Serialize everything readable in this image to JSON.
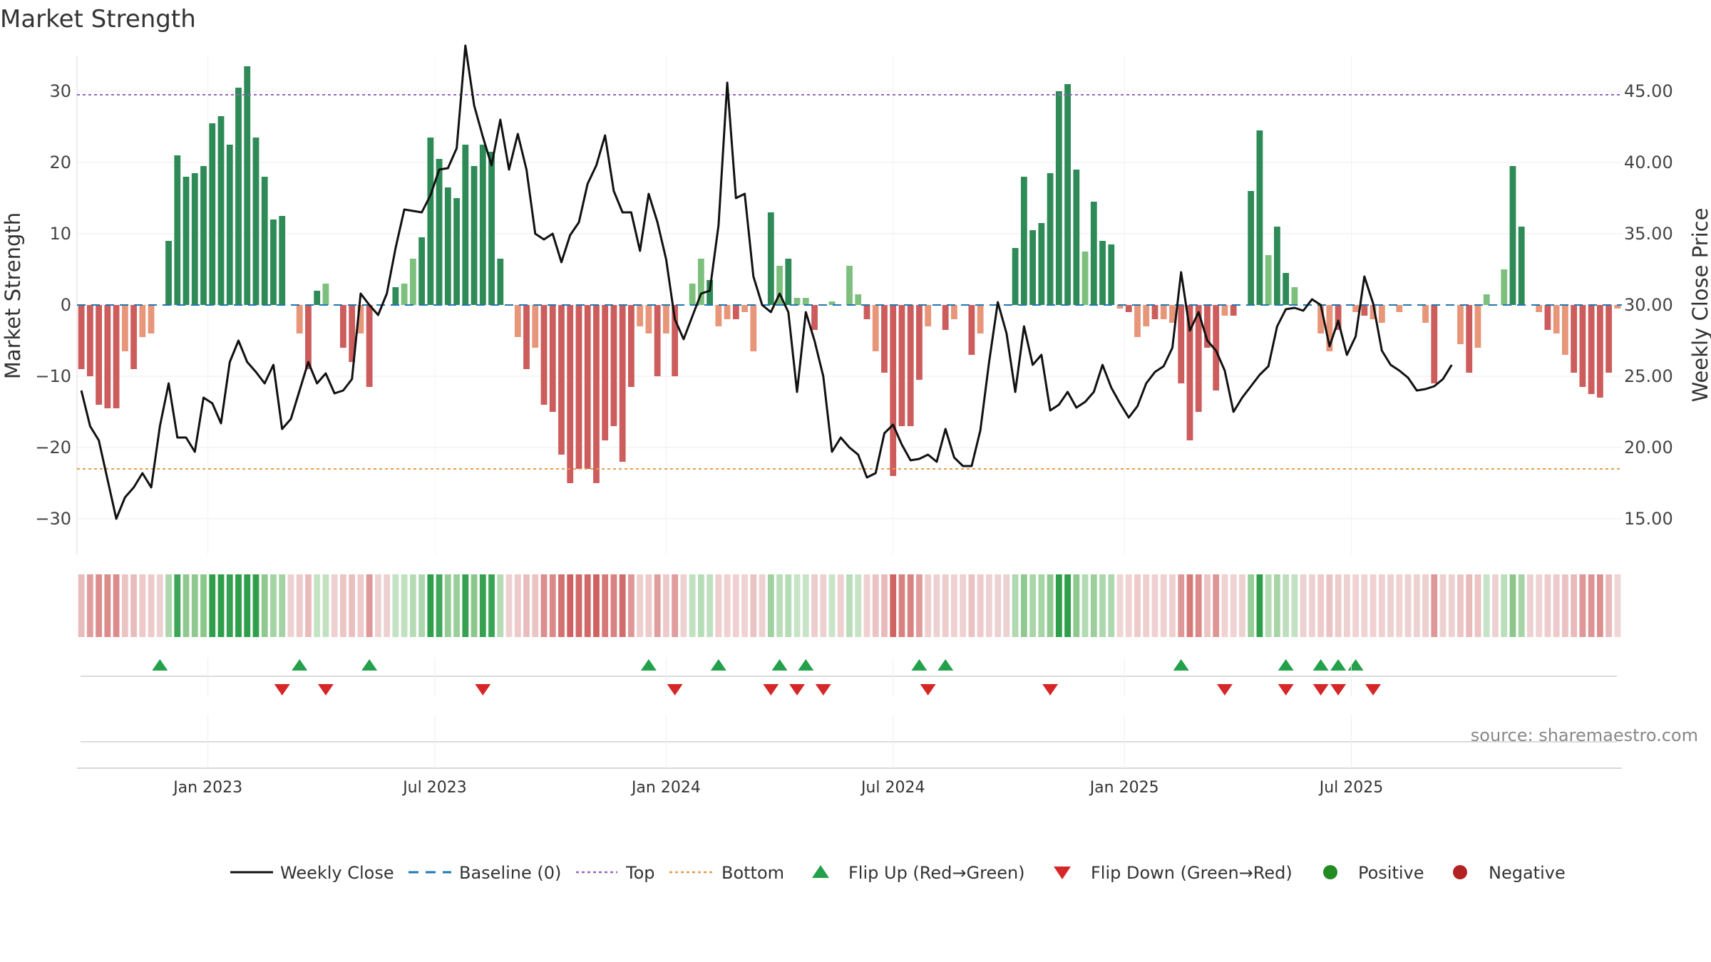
{
  "chart_data": {
    "type": "bar+line",
    "title": "Market Strength",
    "ylabel_left": "Market Strength",
    "ylabel_right": "Weekly Close Price",
    "left_ylim": [
      -35,
      35
    ],
    "right_ylim": [
      12.5,
      47.5
    ],
    "left_ticks": [
      {
        "v": 30,
        "label": "30"
      },
      {
        "v": 20,
        "label": "20"
      },
      {
        "v": 10,
        "label": "10"
      },
      {
        "v": 0,
        "label": "0"
      },
      {
        "v": -10,
        "label": "−10"
      },
      {
        "v": -20,
        "label": "−20"
      },
      {
        "v": -30,
        "label": "−30"
      }
    ],
    "right_ticks": [
      {
        "v": 45,
        "label": "45.00"
      },
      {
        "v": 40,
        "label": "40.00"
      },
      {
        "v": 35,
        "label": "35.00"
      },
      {
        "v": 30,
        "label": "30.00"
      },
      {
        "v": 25,
        "label": "25.00"
      },
      {
        "v": 20,
        "label": "20.00"
      },
      {
        "v": 15,
        "label": "15.00"
      }
    ],
    "x_ticks": [
      {
        "week": 14.5,
        "label": "Jan 2023"
      },
      {
        "week": 40.5,
        "label": "Jul 2023"
      },
      {
        "week": 67,
        "label": "Jan 2024"
      },
      {
        "week": 93,
        "label": "Jul 2024"
      },
      {
        "week": 119.5,
        "label": "Jan 2025"
      },
      {
        "week": 145.5,
        "label": "Jul 2025"
      }
    ],
    "top_threshold": 29.5,
    "bottom_threshold": -23,
    "strength": [
      -9,
      -10,
      -14,
      -14.5,
      -14.5,
      -6.5,
      -9,
      -4.5,
      -4,
      0,
      9,
      21,
      18,
      18.5,
      19.5,
      25.5,
      26.5,
      22.5,
      30.5,
      33.5,
      23.5,
      18,
      12,
      12.5,
      0,
      -4,
      -9,
      2,
      3,
      0,
      -6,
      -8,
      -4,
      -11.5,
      0,
      0,
      2.5,
      3,
      6.5,
      9.5,
      23.5,
      20.5,
      16.5,
      15,
      22.5,
      19.5,
      22.5,
      21.5,
      6.5,
      0,
      -4.5,
      -9,
      -6,
      -14,
      -15,
      -21,
      -25,
      -23,
      -23,
      -25,
      -19,
      -17,
      -22,
      -11.5,
      -3,
      -4,
      -10,
      -4,
      -10,
      0,
      3,
      6.5,
      3.5,
      -3,
      -2,
      -2,
      -1,
      -6.5,
      0,
      13,
      5.5,
      6.5,
      1,
      1,
      -3.5,
      0,
      0.5,
      0,
      5.5,
      1.5,
      -2,
      -6.5,
      -9.5,
      -24,
      -17,
      -17,
      -10.5,
      -3,
      0,
      -3.5,
      -2,
      0,
      -7,
      -4,
      0,
      0,
      0,
      8,
      18,
      10.5,
      11.5,
      18.5,
      30,
      31,
      19,
      7.5,
      14.5,
      9,
      8.5,
      -0.5,
      -1,
      -4.5,
      -3,
      -2,
      -2,
      -2.5,
      -11,
      -19,
      -15,
      -6,
      -12,
      -1.5,
      -1.5,
      0,
      16,
      24.5,
      7,
      11,
      4.5,
      2.5,
      0,
      0,
      -4,
      -6.5,
      -3.5,
      0,
      -1,
      -1.5,
      -2,
      -2.5,
      0,
      -1,
      0,
      0,
      -2.5,
      -11,
      0,
      0,
      -5.5,
      -9.5,
      -6,
      1.5,
      0,
      5,
      19.5,
      11,
      0,
      -1,
      -3.5,
      -4,
      -7,
      -9.5,
      -11.5,
      -12.5,
      -13,
      -9.5,
      -0.5
    ],
    "weekly_close": [
      [
        0,
        24
      ],
      [
        1,
        21.5
      ],
      [
        2,
        20.5
      ],
      [
        4,
        15
      ],
      [
        5,
        16.5
      ],
      [
        6,
        17.2
      ],
      [
        7,
        18.2
      ],
      [
        8,
        17.2
      ],
      [
        9,
        21.5
      ],
      [
        10,
        24.5
      ],
      [
        11,
        20.7
      ],
      [
        12,
        20.7
      ],
      [
        13,
        19.7
      ],
      [
        14,
        23.5
      ],
      [
        15,
        23.1
      ],
      [
        16,
        21.7
      ],
      [
        17,
        26
      ],
      [
        18,
        27.5
      ],
      [
        19,
        26
      ],
      [
        20,
        25.3
      ],
      [
        21,
        24.5
      ],
      [
        22,
        25.8
      ],
      [
        23,
        21.3
      ],
      [
        24,
        22
      ],
      [
        25,
        24
      ],
      [
        26,
        26
      ],
      [
        27,
        24.5
      ],
      [
        28,
        25.2
      ],
      [
        29,
        23.8
      ],
      [
        30,
        24
      ],
      [
        31,
        24.8
      ],
      [
        32,
        30.8
      ],
      [
        33,
        30
      ],
      [
        34,
        29.3
      ],
      [
        35,
        30.8
      ],
      [
        36,
        34
      ],
      [
        37,
        36.7
      ],
      [
        38,
        36.6
      ],
      [
        39,
        36.5
      ],
      [
        40,
        37.7
      ],
      [
        41,
        39.5
      ],
      [
        42,
        39.6
      ],
      [
        43,
        41
      ],
      [
        44,
        48.2
      ],
      [
        45,
        44
      ],
      [
        46,
        41.8
      ],
      [
        47,
        39.8
      ],
      [
        48,
        43
      ],
      [
        49,
        39.5
      ],
      [
        50,
        42
      ],
      [
        51,
        39.5
      ],
      [
        52,
        35
      ],
      [
        53,
        34.6
      ],
      [
        54,
        35
      ],
      [
        55,
        33
      ],
      [
        56,
        34.9
      ],
      [
        57,
        35.8
      ],
      [
        58,
        38.5
      ],
      [
        59,
        39.8
      ],
      [
        60,
        41.9
      ],
      [
        61,
        38
      ],
      [
        62,
        36.5
      ],
      [
        63,
        36.5
      ],
      [
        64,
        33.8
      ],
      [
        65,
        37.8
      ],
      [
        66,
        35.8
      ],
      [
        67,
        33.2
      ],
      [
        68,
        29
      ],
      [
        69,
        27.6
      ],
      [
        70,
        29.2
      ],
      [
        71,
        30.8
      ],
      [
        72,
        31
      ],
      [
        73,
        35.6
      ],
      [
        74,
        45.6
      ],
      [
        75,
        37.5
      ],
      [
        76,
        37.8
      ],
      [
        77,
        32
      ],
      [
        78,
        30
      ],
      [
        79,
        29.5
      ],
      [
        80,
        30.8
      ],
      [
        81,
        29.5
      ],
      [
        82,
        23.9
      ],
      [
        83,
        29.5
      ],
      [
        84,
        27.5
      ],
      [
        85,
        25
      ],
      [
        86,
        19.7
      ],
      [
        87,
        20.7
      ],
      [
        88,
        20
      ],
      [
        89,
        19.5
      ],
      [
        90,
        17.9
      ],
      [
        91,
        18.2
      ],
      [
        92,
        21
      ],
      [
        93,
        21.6
      ],
      [
        94,
        20.2
      ],
      [
        95,
        19.1
      ],
      [
        96,
        19.2
      ],
      [
        97,
        19.5
      ],
      [
        98,
        19
      ],
      [
        99,
        21.3
      ],
      [
        100,
        19.3
      ],
      [
        101,
        18.7
      ],
      [
        102,
        18.7
      ],
      [
        103,
        21.2
      ],
      [
        104,
        26
      ],
      [
        105,
        30.2
      ],
      [
        106,
        28
      ],
      [
        107,
        23.9
      ],
      [
        108,
        28.5
      ],
      [
        109,
        25.8
      ],
      [
        110,
        26.5
      ],
      [
        111,
        22.6
      ],
      [
        112,
        23
      ],
      [
        113,
        23.9
      ],
      [
        114,
        22.8
      ],
      [
        115,
        23.2
      ],
      [
        116,
        23.9
      ],
      [
        117,
        25.8
      ],
      [
        118,
        24.2
      ],
      [
        119,
        23.1
      ],
      [
        120,
        22.1
      ],
      [
        121,
        22.9
      ],
      [
        122,
        24.5
      ],
      [
        123,
        25.3
      ],
      [
        124,
        25.7
      ],
      [
        125,
        27
      ],
      [
        126,
        32.3
      ],
      [
        127,
        28.2
      ],
      [
        128,
        29.5
      ],
      [
        129,
        27.5
      ],
      [
        130,
        26.8
      ],
      [
        131,
        25.4
      ],
      [
        132,
        22.5
      ],
      [
        133,
        23.5
      ],
      [
        134,
        24.3
      ],
      [
        135,
        25.1
      ],
      [
        136,
        25.7
      ],
      [
        137,
        28.5
      ],
      [
        138,
        29.7
      ],
      [
        139,
        29.8
      ],
      [
        140,
        29.6
      ],
      [
        141,
        30.4
      ],
      [
        142,
        30
      ],
      [
        143,
        27.1
      ],
      [
        144,
        28.9
      ],
      [
        145,
        26.5
      ],
      [
        146,
        27.8
      ],
      [
        147,
        32
      ],
      [
        148,
        30.1
      ],
      [
        149,
        26.8
      ],
      [
        150,
        25.8
      ],
      [
        151,
        25.4
      ],
      [
        152,
        24.9
      ],
      [
        153,
        24
      ],
      [
        154,
        24.1
      ],
      [
        155,
        24.3
      ],
      [
        156,
        24.8
      ],
      [
        157,
        25.8
      ]
    ],
    "flip_up_weeks": [
      9,
      25,
      33,
      65,
      73,
      80,
      83,
      96,
      99,
      126,
      138,
      142,
      144,
      146
    ],
    "flip_down_weeks": [
      23,
      28,
      46,
      68,
      79,
      82,
      85,
      97,
      111,
      131,
      138,
      142,
      144,
      148
    ],
    "flip_up_label": "Flip Up (Red→Green)",
    "flip_down_label": "Flip Down (Green→Red)",
    "series": [
      {
        "name": "Weekly Close",
        "style": "line"
      },
      {
        "name": "Baseline (0)",
        "style": "dashed"
      },
      {
        "name": "Top",
        "style": "dotted"
      },
      {
        "name": "Bottom",
        "style": "dotted"
      },
      {
        "name": "Flip Up (Red→Green)",
        "style": "marker-up"
      },
      {
        "name": "Flip Down (Green→Red)",
        "style": "marker-down"
      },
      {
        "name": "Positive",
        "style": "dot"
      },
      {
        "name": "Negative",
        "style": "dot"
      }
    ]
  },
  "colors": {
    "pos_strong": "#2e8b57",
    "pos_weak": "#7dc07d",
    "neg_strong": "#cd5c5c",
    "neg_weak": "#e8967a",
    "line": "#111111",
    "baseline": "#1f77b4",
    "top": "#9467bd",
    "bottom": "#e69a4b",
    "flip_up": "#22a04a",
    "flip_down": "#d62728",
    "positive_dot": "#228b22",
    "negative_dot": "#b22222"
  },
  "source": "source: sharemaestro.com"
}
